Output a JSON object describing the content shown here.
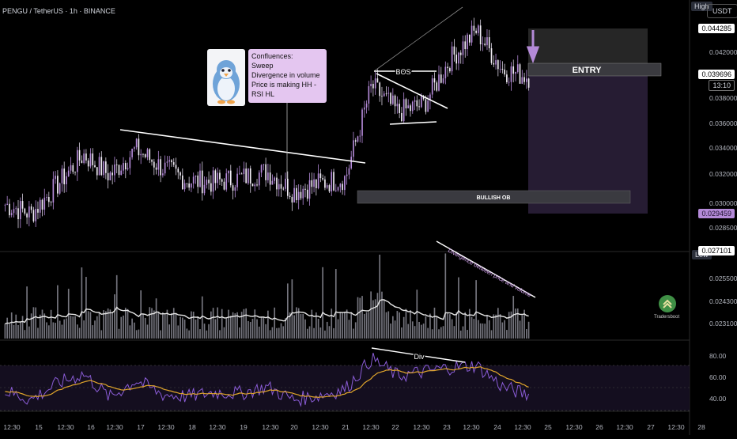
{
  "symbol": "PENGU / TetherUS · 1h · BINANCE",
  "currency": "USDT",
  "price_scale": {
    "ticks": [
      "0.042000",
      "0.038000",
      "0.036000",
      "0.034000",
      "0.032000",
      "0.030000",
      "0.028500"
    ],
    "high_tag": "High",
    "high_value": "0.044285",
    "current_value": "0.039696",
    "countdown": "13:10",
    "purple_value": "0.029459",
    "low_tag": "Low",
    "low_value": "0.027101"
  },
  "volume_scale": {
    "ticks": [
      "0.025500",
      "0.024300",
      "0.023100"
    ]
  },
  "rsi_scale": {
    "ticks": [
      "80.00",
      "60.00",
      "40.00"
    ]
  },
  "time_axis": [
    "12:30",
    "15",
    "12:30",
    "16",
    "12:30",
    "17",
    "12:30",
    "18",
    "12:30",
    "19",
    "12:30",
    "20",
    "12:30",
    "21",
    "12:30",
    "22",
    "12:30",
    "23",
    "12:30",
    "24",
    "12:30",
    "25",
    "12:30",
    "26",
    "12:30",
    "27",
    "12:30",
    "28"
  ],
  "annotations": {
    "confluences_lines": [
      "Confluences:",
      "Sweep",
      "Divergence in volume",
      "Price is making HH - RSI HL"
    ],
    "bos": "BOS",
    "entry": "ENTRY",
    "bullish_ob": "BULLISH OB",
    "divergence_note": "Divergence between price and volume",
    "div": "Div",
    "brand": "Tradersboot"
  },
  "colors": {
    "background": "#000000",
    "candle": "#b48ad8",
    "volume_bar": "#8b8b95",
    "volume_ma": "#e6e6e6",
    "rsi_line": "#8a5cd6",
    "rsi_ma": "#e0a52b",
    "zone_upper": "#2a2a2a",
    "zone_lower": "#2a1f38",
    "entry_zone": "#3a3a3f",
    "ob_zone": "#3a3a40",
    "brand_green": "#4caf50"
  },
  "chart_data": {
    "type": "candlestick",
    "title": "PENGU / TetherUS · 1h · BINANCE",
    "xlabel": "",
    "ylabel": "",
    "ylim": [
      0.0265,
      0.0455
    ],
    "x": [
      "14 12:30",
      "15 00:00",
      "15 12:30",
      "16 00:00",
      "16 12:30",
      "17 00:00",
      "17 12:30",
      "18 00:00",
      "18 12:30",
      "19 00:00",
      "19 12:30",
      "20 00:00",
      "20 12:30",
      "21 00:00",
      "21 12:30",
      "22 00:00",
      "22 12:30",
      "23 00:00",
      "23 12:30",
      "24 00:00",
      "24 12:30"
    ],
    "close": [
      0.03,
      0.0293,
      0.0315,
      0.0338,
      0.0322,
      0.0342,
      0.0328,
      0.0318,
      0.0317,
      0.032,
      0.0325,
      0.031,
      0.0316,
      0.032,
      0.039,
      0.037,
      0.0376,
      0.041,
      0.0432,
      0.0402,
      0.0397
    ],
    "series": [
      {
        "name": "Volume",
        "values": [
          0.0238,
          0.0234,
          0.0237,
          0.0245,
          0.0234,
          0.0241,
          0.0233,
          0.0232,
          0.0235,
          0.0233,
          0.0236,
          0.0234,
          0.0231,
          0.0232,
          0.0247,
          0.0237,
          0.0238,
          0.024,
          0.0237,
          0.0236,
          0.0235
        ]
      },
      {
        "name": "RSI",
        "values": [
          48,
          40,
          55,
          64,
          42,
          58,
          45,
          43,
          47,
          46,
          52,
          40,
          44,
          50,
          78,
          62,
          66,
          70,
          72,
          52,
          44
        ]
      }
    ],
    "levels": {
      "high": 0.044285,
      "current": 0.039696,
      "low": 0.027101,
      "ob_low": 0.029459
    },
    "grid": false
  }
}
